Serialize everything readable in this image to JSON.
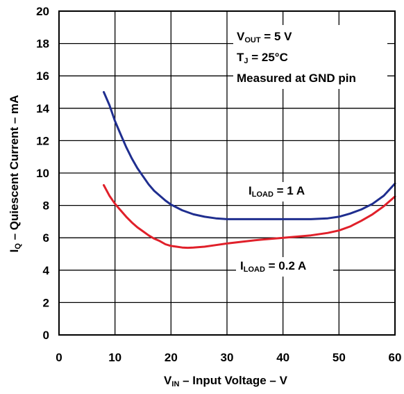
{
  "chart_data": {
    "type": "line",
    "xlabel": {
      "main": "V",
      "sub": "IN",
      "rest": " – Input Voltage – V"
    },
    "ylabel": {
      "main": "I",
      "sub": "Q",
      "rest": " – Quiescent Current – mA"
    },
    "xlim": [
      0,
      60
    ],
    "ylim": [
      0,
      20
    ],
    "x_ticks": [
      "0",
      "10",
      "20",
      "30",
      "40",
      "50",
      "60"
    ],
    "y_ticks": [
      "0",
      "2",
      "4",
      "6",
      "8",
      "10",
      "12",
      "14",
      "16",
      "18",
      "20"
    ],
    "grid": true,
    "annotations": {
      "vout": {
        "main": "V",
        "sub": "OUT",
        "rest": " = 5 V"
      },
      "tj": {
        "main": "T",
        "sub": "J",
        "rest": " = 25°C"
      },
      "measured": "Measured at GND pin"
    },
    "series": [
      {
        "name": "I_LOAD = 1 A",
        "label": {
          "main": "I",
          "sub": "LOAD",
          "rest": " = 1 A"
        },
        "color": "#1f2e8f",
        "x": [
          8,
          9,
          10,
          11,
          12,
          13,
          14,
          15,
          16,
          17,
          18,
          19,
          20,
          22,
          24,
          26,
          28,
          30,
          35,
          40,
          45,
          48,
          50,
          52,
          54,
          56,
          58,
          60
        ],
        "y": [
          15.0,
          14.2,
          13.2,
          12.4,
          11.6,
          10.9,
          10.3,
          9.8,
          9.3,
          8.9,
          8.6,
          8.3,
          8.05,
          7.7,
          7.45,
          7.3,
          7.2,
          7.15,
          7.15,
          7.15,
          7.15,
          7.2,
          7.3,
          7.5,
          7.75,
          8.1,
          8.6,
          9.35
        ]
      },
      {
        "name": "I_LOAD = 0.2 A",
        "label": {
          "main": "I",
          "sub": "LOAD",
          "rest": " = 0.2 A"
        },
        "color": "#e0202a",
        "x": [
          8,
          9,
          10,
          11,
          12,
          13,
          14,
          15,
          16,
          17,
          18,
          19,
          20,
          21,
          22,
          23,
          24,
          26,
          28,
          30,
          35,
          40,
          45,
          48,
          50,
          52,
          54,
          56,
          58,
          60
        ],
        "y": [
          9.25,
          8.6,
          8.1,
          7.7,
          7.3,
          6.95,
          6.65,
          6.4,
          6.15,
          5.95,
          5.8,
          5.6,
          5.5,
          5.45,
          5.4,
          5.38,
          5.4,
          5.45,
          5.55,
          5.65,
          5.85,
          6.0,
          6.15,
          6.3,
          6.45,
          6.7,
          7.05,
          7.45,
          7.95,
          8.55
        ]
      }
    ]
  }
}
